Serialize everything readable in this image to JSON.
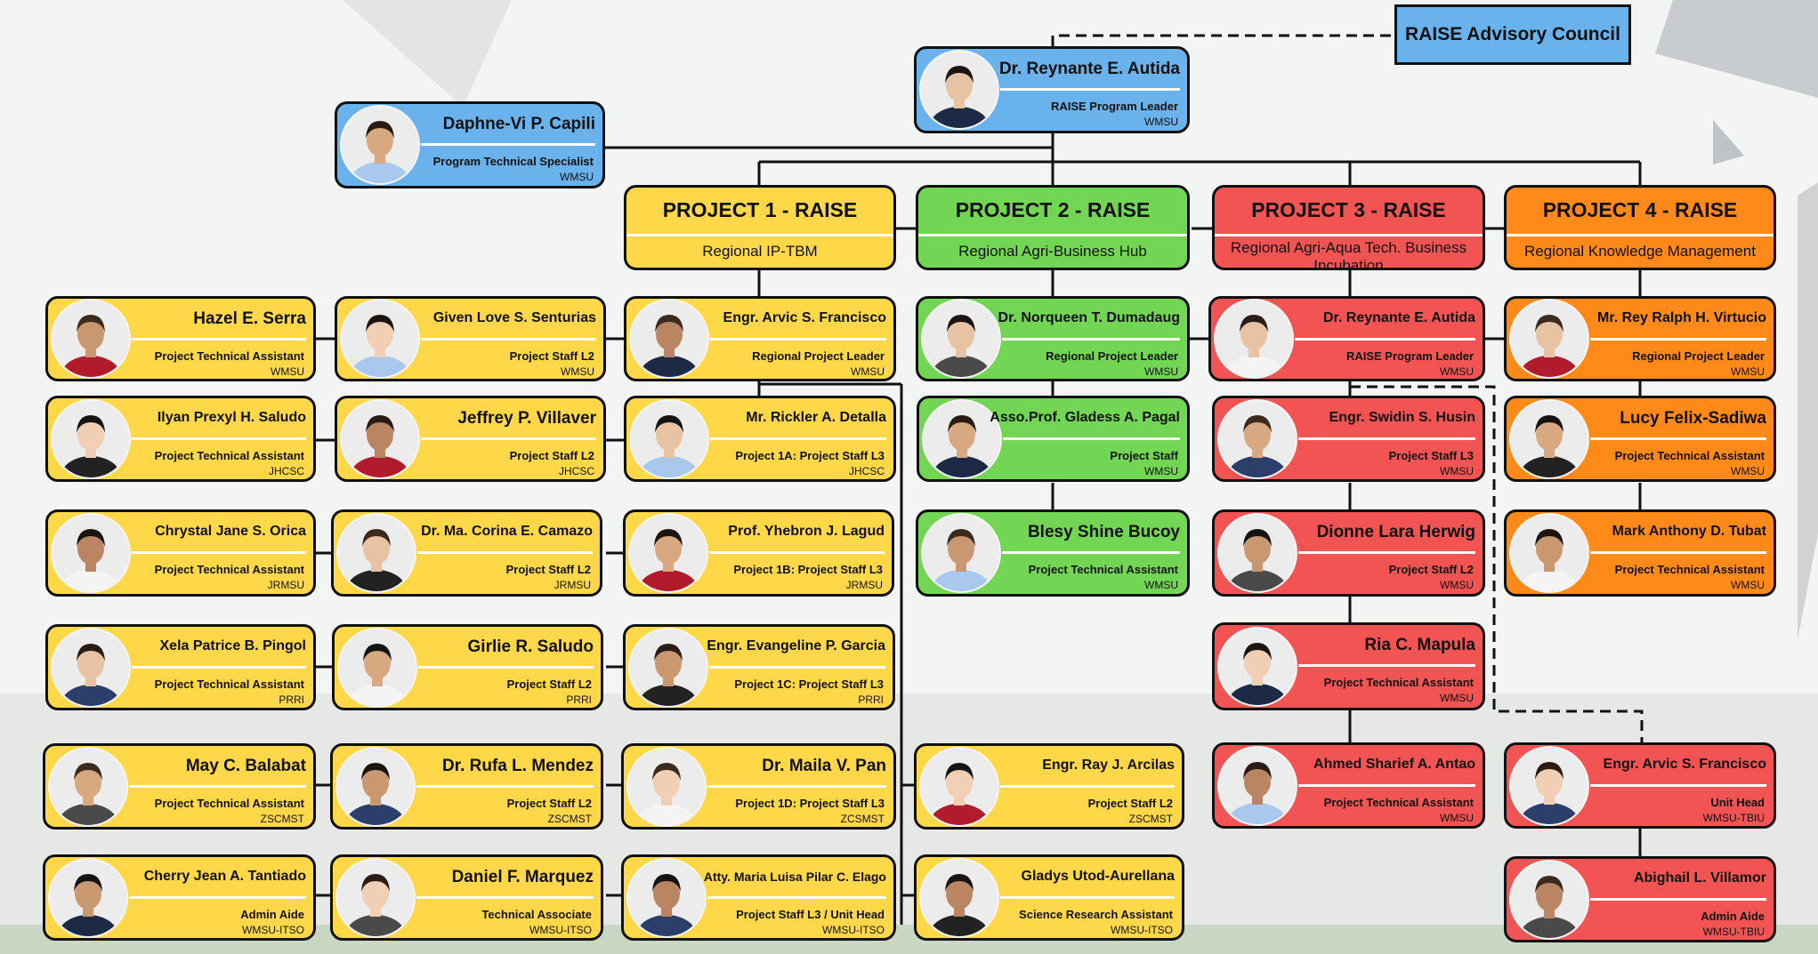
{
  "advisory_council": "RAISE Advisory Council",
  "program_leader": {
    "name": "Dr. Reynante E. Autida",
    "role": "RAISE Program Leader",
    "affiliation": "WMSU"
  },
  "program_specialist": {
    "name": "Daphne-Vi P. Capili",
    "role": "Program Technical Specialist",
    "affiliation": "WMSU"
  },
  "projects": [
    {
      "title": "PROJECT 1 - RAISE",
      "subtitle": "Regional IP-TBM",
      "color": "#ffd84a"
    },
    {
      "title": "PROJECT 2 - RAISE",
      "subtitle": "Regional Agri-Business Hub",
      "color": "#72d554"
    },
    {
      "title": "PROJECT 3 - RAISE",
      "subtitle": "Regional Agri-Aqua Tech. Business Incubation",
      "color": "#f25454"
    },
    {
      "title": "PROJECT 4 - RAISE",
      "subtitle": "Regional Knowledge Management",
      "color": "#ff8a1a"
    }
  ],
  "p1_col_a": [
    {
      "name": "Hazel E. Serra",
      "role": "Project Technical Assistant",
      "affiliation": "WMSU"
    },
    {
      "name": "Ilyan Prexyl H. Saludo",
      "role": "Project Technical Assistant",
      "affiliation": "JHCSC"
    },
    {
      "name": "Chrystal Jane S. Orica",
      "role": "Project Technical Assistant",
      "affiliation": "JRMSU"
    },
    {
      "name": "Xela Patrice B. Pingol",
      "role": "Project Technical Assistant",
      "affiliation": "PRRI"
    },
    {
      "name": "May C. Balabat",
      "role": "Project Technical Assistant",
      "affiliation": "ZSCMST"
    },
    {
      "name": "Cherry Jean A. Tantiado",
      "role": "Admin Aide",
      "affiliation": "WMSU-ITSO"
    }
  ],
  "p1_col_b": [
    {
      "name": "Given Love S. Senturias",
      "role": "Project Staff L2",
      "affiliation": "WMSU"
    },
    {
      "name": "Jeffrey P. Villaver",
      "role": "Project Staff L2",
      "affiliation": "JHCSC"
    },
    {
      "name": "Dr. Ma. Corina E. Camazo",
      "role": "Project Staff L2",
      "affiliation": "JRMSU"
    },
    {
      "name": "Girlie R. Saludo",
      "role": "Project Staff L2",
      "affiliation": "PRRI"
    },
    {
      "name": "Dr. Rufa L. Mendez",
      "role": "Project Staff L2",
      "affiliation": "ZSCMST"
    },
    {
      "name": "Daniel F. Marquez",
      "role": "Technical Associate",
      "affiliation": "WMSU-ITSO"
    }
  ],
  "p1_col_c": [
    {
      "name": "Engr. Arvic S. Francisco",
      "role": "Regional Project Leader",
      "affiliation": "WMSU"
    },
    {
      "name": "Mr. Rickler A. Detalla",
      "role": "Project 1A: Project Staff L3",
      "affiliation": "JHCSC"
    },
    {
      "name": "Prof. Yhebron J. Lagud",
      "role": "Project 1B: Project Staff L3",
      "affiliation": "JRMSU"
    },
    {
      "name": "Engr. Evangeline P. Garcia",
      "role": "Project 1C: Project Staff L3",
      "affiliation": "PRRI"
    },
    {
      "name": "Dr. Maila V. Pan",
      "role": "Project 1D: Project Staff L3",
      "affiliation": "ZCSMST"
    },
    {
      "name": "Atty. Maria Luisa Pilar C. Elago",
      "role": "Project Staff L3 / Unit Head",
      "affiliation": "WMSU-ITSO"
    }
  ],
  "p2_col": [
    {
      "name": "Dr. Norqueen T. Dumadaug",
      "role": "Regional Project Leader",
      "affiliation": "WMSU"
    },
    {
      "name": "Asso.Prof. Gladess A. Pagal",
      "role": "Project Staff",
      "affiliation": "WMSU"
    },
    {
      "name": "Blesy Shine Bucoy",
      "role": "Project Technical Assistant",
      "affiliation": "WMSU"
    }
  ],
  "p1_itso_extra": [
    {
      "name": "Engr. Ray J. Arcilas",
      "role": "Project Staff L2",
      "affiliation": "ZSCMST"
    },
    {
      "name": "Gladys Utod-Aurellana",
      "role": "Science Research Assistant",
      "affiliation": "WMSU-ITSO"
    }
  ],
  "p3_col": [
    {
      "name": "Dr. Reynante E. Autida",
      "role": "RAISE Program Leader",
      "affiliation": "WMSU"
    },
    {
      "name": "Engr. Swidin S. Husin",
      "role": "Project Staff L3",
      "affiliation": "WMSU"
    },
    {
      "name": "Dionne Lara Herwig",
      "role": "Project Staff L2",
      "affiliation": "WMSU"
    },
    {
      "name": "Ria C. Mapula",
      "role": "Project Technical Assistant",
      "affiliation": "WMSU"
    },
    {
      "name": "Ahmed Sharief A. Antao",
      "role": "Project Technical Assistant",
      "affiliation": "WMSU"
    }
  ],
  "p4_col": [
    {
      "name": "Mr. Rey Ralph H. Virtucio",
      "role": "Regional Project Leader",
      "affiliation": "WMSU"
    },
    {
      "name": "Lucy Felix-Sadiwa",
      "role": "Project Technical Assistant",
      "affiliation": "WMSU"
    },
    {
      "name": "Mark Anthony D. Tubat",
      "role": "Project Technical Assistant",
      "affiliation": "WMSU"
    }
  ],
  "tbiu": [
    {
      "name": "Engr. Arvic S. Francisco",
      "role": "Unit Head",
      "affiliation": "WMSU-TBIU"
    },
    {
      "name": "Abighail L. Villamor",
      "role": "Admin Aide",
      "affiliation": "WMSU-TBIU"
    }
  ]
}
